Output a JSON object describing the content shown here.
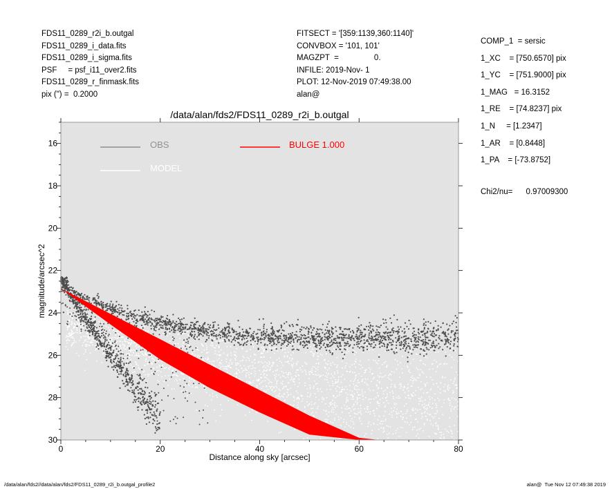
{
  "header_left": [
    "FDS11_0289_r2i_b.outgal",
    "FDS11_0289_i_data.fits",
    "FDS11_0289_i_sigma.fits",
    "PSF     = psf_i11_over2.fits",
    "FDS11_0289_r_finmask.fits",
    "pix (\") =  0.2000"
  ],
  "header_mid": [
    "FITSECT = '[359:1139,360:1140]'",
    "CONVBOX = '101, 101'",
    "MAGZPT  =                0.",
    "INFILE: 2019-Nov- 1",
    "PLOT: 12-Nov-2019 07:49:38.00",
    "alan@"
  ],
  "header_right": [
    "COMP_1  = sersic",
    "1_XC    = [750.6570] pix",
    "1_YC    = [751.9000] pix",
    "1_MAG   = 16.3152",
    "1_RE    = [74.8237] pix",
    "1_N     = [1.2347]",
    "1_AR    = [0.8448]",
    "1_PA    = [-73.8752]"
  ],
  "chi2_text": "Chi2/nu=      0.97009300",
  "footer_left": "/data/alan/fds2//data/alan/fds2/FDS11_0289_r2i_b.outgal_profile2",
  "footer_right": "alan@  Tue Nov 12 07:49:38 2019",
  "colors": {
    "panel_bg": "#e3e3e3",
    "obs": "#4d4d4d",
    "model": "#ffffff",
    "bulge": "#ff0000",
    "legend_obs_text": "#909090",
    "legend_model_text": "#ffffff"
  },
  "chart_data": {
    "type": "scatter",
    "title": "/data/alan/fds2/FDS11_0289_r2i_b.outgal",
    "xlabel": "Distance along sky [arcsec]",
    "ylabel": "magnitude/arcsec^2",
    "xlim": [
      0,
      80
    ],
    "ylim": [
      30,
      15
    ],
    "x_ticks": [
      "0",
      "20",
      "40",
      "60",
      "80"
    ],
    "y_ticks": [
      "16",
      "18",
      "20",
      "22",
      "24",
      "26",
      "28",
      "30"
    ],
    "legend": {
      "obs_label": "OBS",
      "model_label": "MODEL",
      "bulge_label": "BULGE  1.000"
    },
    "series": [
      {
        "name": "OBS",
        "description_points": {
          "upper_branch_x": [
            0,
            2,
            5,
            10,
            15,
            20,
            30,
            40,
            50,
            60,
            70,
            80
          ],
          "upper_branch_y": [
            22.4,
            22.9,
            23.3,
            23.8,
            24.2,
            24.5,
            24.9,
            25.1,
            25.2,
            25.2,
            25.2,
            25.1
          ],
          "lower_branch_x": [
            0,
            3,
            6,
            9,
            12,
            15,
            20
          ],
          "lower_branch_y": [
            22.4,
            23.6,
            24.6,
            25.6,
            26.6,
            27.6,
            29.0
          ]
        }
      },
      {
        "name": "MODEL",
        "x": [
          0,
          10,
          20,
          30,
          40,
          50,
          60,
          70,
          80
        ],
        "y": [
          24.5,
          25.4,
          26.1,
          26.6,
          27.0,
          27.4,
          27.7,
          28.0,
          28.2
        ]
      },
      {
        "name": "BULGE  1.000",
        "x": [
          0,
          10,
          20,
          30,
          40,
          50,
          60,
          64
        ],
        "y_upper": [
          22.85,
          24.05,
          25.25,
          26.45,
          27.65,
          28.85,
          29.9,
          30.0
        ],
        "y_lower": [
          22.85,
          24.55,
          26.2,
          27.55,
          28.7,
          29.75,
          30.0,
          30.0
        ]
      }
    ]
  }
}
